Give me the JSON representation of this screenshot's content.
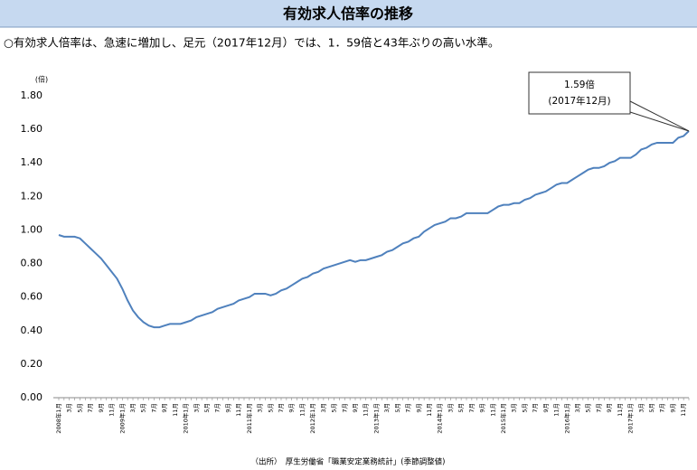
{
  "chart_data": {
    "type": "line",
    "title": "有効求人倍率の推移",
    "subtitle": "○有効求人倍率は、急速に増加し、足元（2017年12月）では、1．59倍と43年ぶりの高い水準。",
    "y_label": "(倍)",
    "source": "（出所）　厚生労働省「職業安定業務統計」(季節調整値)",
    "annotation": [
      "1.59倍",
      "(2017年12月)"
    ],
    "categories": [
      "2008年1月",
      null,
      "3月",
      null,
      "5月",
      null,
      "7月",
      null,
      "9月",
      null,
      "11月",
      null,
      "2009年1月",
      null,
      "3月",
      null,
      "5月",
      null,
      "7月",
      null,
      "9月",
      null,
      "11月",
      null,
      "2010年1月",
      null,
      "3月",
      null,
      "5月",
      null,
      "7月",
      null,
      "9月",
      null,
      "11月",
      null,
      "2011年1月",
      null,
      "3月",
      null,
      "5月",
      null,
      "7月",
      null,
      "9月",
      null,
      "11月",
      null,
      "2012年1月",
      null,
      "3月",
      null,
      "5月",
      null,
      "7月",
      null,
      "9月",
      null,
      "11月",
      null,
      "2013年1月",
      null,
      "3月",
      null,
      "5月",
      null,
      "7月",
      null,
      "9月",
      null,
      "11月",
      null,
      "2014年1月",
      null,
      "3月",
      null,
      "5月",
      null,
      "7月",
      null,
      "9月",
      null,
      "11月",
      null,
      "2015年1月",
      null,
      "3月",
      null,
      "5月",
      null,
      "7月",
      null,
      "9月",
      null,
      "11月",
      null,
      "2016年1月",
      null,
      "3月",
      null,
      "5月",
      null,
      "7月",
      null,
      "9月",
      null,
      "11月",
      null,
      "2017年1月",
      null,
      "3月",
      null,
      "5月",
      null,
      "7月",
      null,
      "9月",
      null,
      "11月",
      null
    ],
    "series": [
      {
        "color": "#4f81bd",
        "values": [
          0.97,
          0.96,
          0.96,
          0.96,
          0.95,
          0.92,
          0.89,
          0.86,
          0.83,
          0.79,
          0.75,
          0.71,
          0.65,
          0.58,
          0.52,
          0.48,
          0.45,
          0.43,
          0.42,
          0.42,
          0.43,
          0.44,
          0.44,
          0.44,
          0.45,
          0.46,
          0.48,
          0.49,
          0.5,
          0.51,
          0.53,
          0.54,
          0.55,
          0.56,
          0.58,
          0.59,
          0.6,
          0.62,
          0.62,
          0.62,
          0.61,
          0.62,
          0.64,
          0.65,
          0.67,
          0.69,
          0.71,
          0.72,
          0.74,
          0.75,
          0.77,
          0.78,
          0.79,
          0.8,
          0.81,
          0.82,
          0.81,
          0.82,
          0.82,
          0.83,
          0.84,
          0.85,
          0.87,
          0.88,
          0.9,
          0.92,
          0.93,
          0.95,
          0.96,
          0.99,
          1.01,
          1.03,
          1.04,
          1.05,
          1.07,
          1.07,
          1.08,
          1.1,
          1.1,
          1.1,
          1.1,
          1.1,
          1.12,
          1.14,
          1.15,
          1.15,
          1.16,
          1.16,
          1.18,
          1.19,
          1.21,
          1.22,
          1.23,
          1.25,
          1.27,
          1.28,
          1.28,
          1.3,
          1.32,
          1.34,
          1.36,
          1.37,
          1.37,
          1.38,
          1.4,
          1.41,
          1.43,
          1.43,
          1.43,
          1.45,
          1.48,
          1.49,
          1.51,
          1.52,
          1.52,
          1.52,
          1.52,
          1.55,
          1.56,
          1.59
        ]
      }
    ],
    "ylim": [
      0,
      1.8
    ],
    "yticks": [
      {
        "value": 0,
        "label": "0.00"
      },
      {
        "value": 0.2,
        "label": "0.20"
      },
      {
        "value": 0.4,
        "label": "0.40"
      },
      {
        "value": 0.6,
        "label": "0.60"
      },
      {
        "value": 0.8,
        "label": "0.80"
      },
      {
        "value": 1.0,
        "label": "1.00"
      },
      {
        "value": 1.2,
        "label": "1.20"
      },
      {
        "value": 1.4,
        "label": "1.40"
      },
      {
        "value": 1.6,
        "label": "1.60"
      },
      {
        "value": 1.8,
        "label": "1.80"
      }
    ],
    "grid": false
  }
}
